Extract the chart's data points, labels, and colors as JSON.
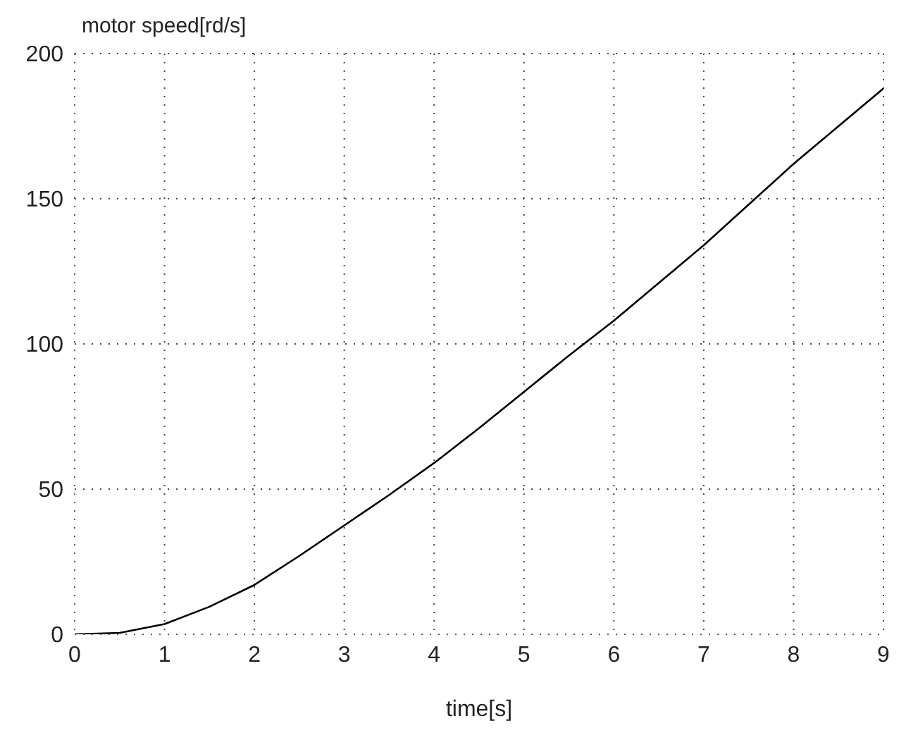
{
  "chart_data": {
    "type": "line",
    "xlabel": "time[s]",
    "ylabel": "motor speed[rd/s]",
    "x": [
      0,
      0.5,
      1,
      1.5,
      2,
      2.5,
      3,
      3.5,
      4,
      4.5,
      5,
      5.5,
      6,
      6.5,
      7,
      7.5,
      8,
      8.5,
      9
    ],
    "series": [
      {
        "color": "#000000",
        "values": [
          0,
          0.5,
          3.5,
          9.5,
          17,
          27,
          37.5,
          48,
          59,
          71,
          83.5,
          96,
          108,
          121,
          134,
          148,
          162,
          175,
          188
        ]
      }
    ],
    "xlim": [
      0,
      9
    ],
    "xticks": [
      0,
      1,
      2,
      3,
      4,
      5,
      6,
      7,
      8,
      9
    ],
    "ylim": [
      0,
      200
    ],
    "yticks": [
      0,
      50,
      100,
      150,
      200
    ],
    "grid": true,
    "line_style": "solid",
    "marker": "none"
  }
}
